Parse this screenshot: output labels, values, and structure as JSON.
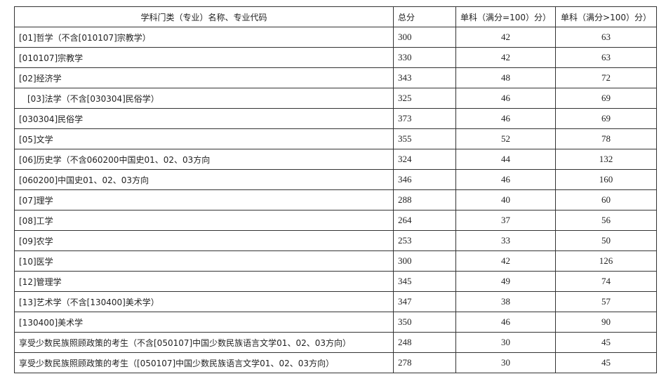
{
  "header": {
    "name": "学科门类（专业）名称、专业代码",
    "total": "总分",
    "single100": "单科（满分=100）分）",
    "single_gt100": "单科（满分>100）分）"
  },
  "rows": [
    {
      "name": "[01]哲学（不含[010107]宗教学）",
      "total": "300",
      "s1": "42",
      "s2": "63"
    },
    {
      "name": "[010107]宗教学",
      "total": "330",
      "s1": "42",
      "s2": "63"
    },
    {
      "name": "[02]经济学",
      "total": "343",
      "s1": "48",
      "s2": "72"
    },
    {
      "name": "[03]法学（不含[030304]民俗学）",
      "total": "325",
      "s1": "46",
      "s2": "69"
    },
    {
      "name": "[030304]民俗学",
      "total": "373",
      "s1": "46",
      "s2": "69"
    },
    {
      "name": "[05]文学",
      "total": "355",
      "s1": "52",
      "s2": "78"
    },
    {
      "name": "[06]历史学（不含060200中国史01、02、03方向",
      "total": "324",
      "s1": "44",
      "s2": "132"
    },
    {
      "name": "[060200]中国史01、02、03方向",
      "total": "346",
      "s1": "46",
      "s2": "160"
    },
    {
      "name": "[07]理学",
      "total": "288",
      "s1": "40",
      "s2": "60"
    },
    {
      "name": "[08]工学",
      "total": "264",
      "s1": "37",
      "s2": "56"
    },
    {
      "name": "[09]农学",
      "total": "253",
      "s1": "33",
      "s2": "50"
    },
    {
      "name": "[10]医学",
      "total": "300",
      "s1": "42",
      "s2": "126"
    },
    {
      "name": "[12]管理学",
      "total": "345",
      "s1": "49",
      "s2": "74"
    },
    {
      "name": "[13]艺术学（不含[130400]美术学）",
      "total": "347",
      "s1": "38",
      "s2": "57"
    },
    {
      "name": "[130400]美术学",
      "total": "350",
      "s1": "46",
      "s2": "90"
    },
    {
      "name": "享受少数民族照顾政策的考生（不含[050107]中国少数民族语言文学01、02、03方向）",
      "total": "248",
      "s1": "30",
      "s2": "45"
    },
    {
      "name": "享受少数民族照顾政策的考生（[050107]中国少数民族语言文学01、02、03方向）",
      "total": "278",
      "s1": "30",
      "s2": "45"
    }
  ]
}
